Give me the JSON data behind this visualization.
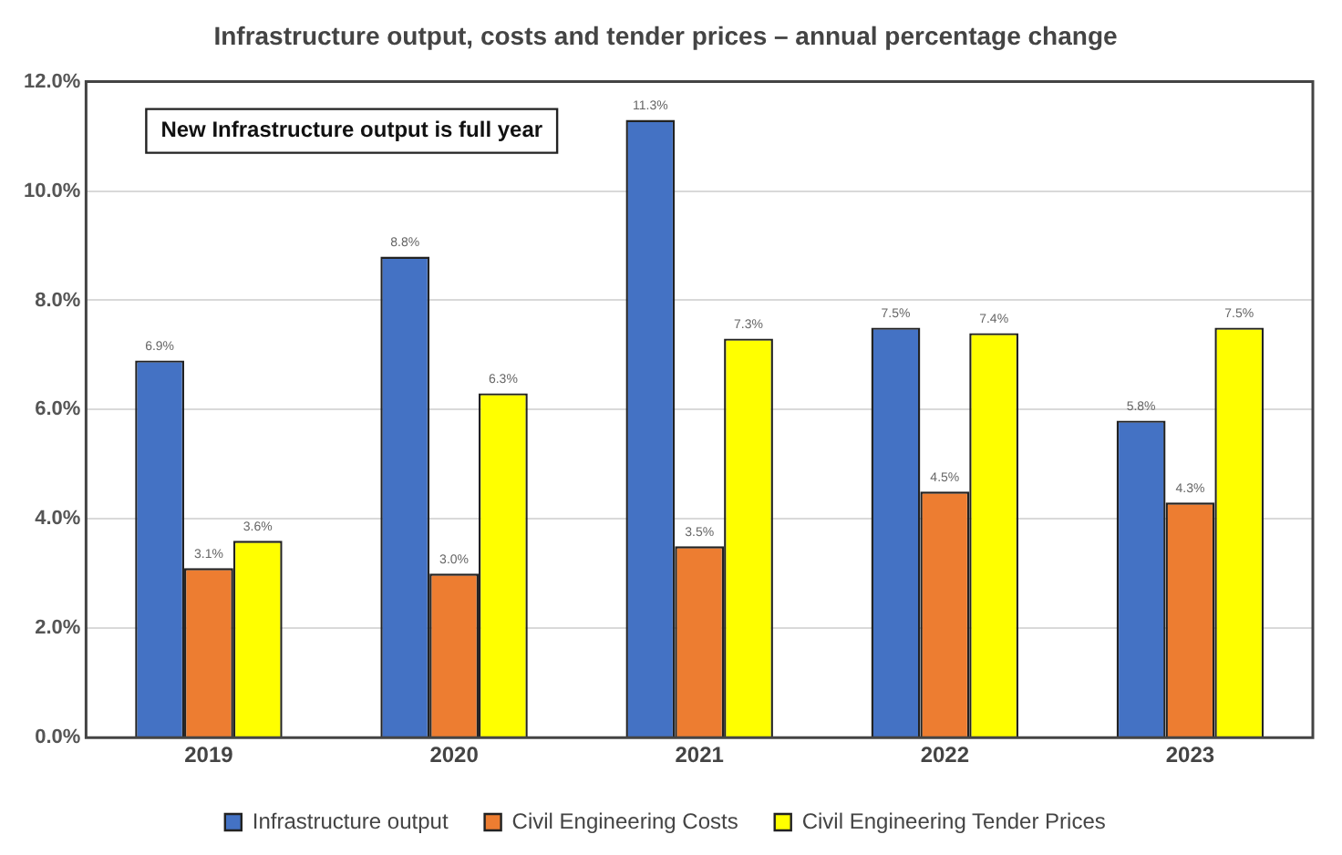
{
  "chart_data": {
    "type": "bar",
    "title": "Infrastructure output, costs and tender prices – annual percentage change",
    "categories": [
      "2019",
      "2020",
      "2021",
      "2022",
      "2023"
    ],
    "series": [
      {
        "name": "Infrastructure output",
        "color": "#4472c4",
        "values": [
          6.9,
          8.8,
          11.3,
          7.5,
          5.8
        ],
        "value_labels": [
          "6.9%",
          "8.8%",
          "11.3%",
          "7.5%",
          "5.8%"
        ]
      },
      {
        "name": "Civil Engineering Costs",
        "color": "#ed7d31",
        "values": [
          3.1,
          3.0,
          3.5,
          4.5,
          4.3
        ],
        "value_labels": [
          "3.1%",
          "3.0%",
          "3.5%",
          "4.5%",
          "4.3%"
        ]
      },
      {
        "name": "Civil Engineering Tender Prices",
        "color": "#ffff00",
        "values": [
          3.6,
          6.3,
          7.3,
          7.4,
          7.5
        ],
        "value_labels": [
          "3.6%",
          "6.3%",
          "7.3%",
          "7.4%",
          "7.5%"
        ]
      }
    ],
    "ylim": [
      0,
      12
    ],
    "yticks": [
      {
        "value": 0,
        "label": "0.0%"
      },
      {
        "value": 2,
        "label": "2.0%"
      },
      {
        "value": 4,
        "label": "4.0%"
      },
      {
        "value": 6,
        "label": "6.0%"
      },
      {
        "value": 8,
        "label": "8.0%"
      },
      {
        "value": 10,
        "label": "10.0%"
      },
      {
        "value": 12,
        "label": "12.0%"
      }
    ],
    "grid": "y",
    "legend": "bottom",
    "annotations": [
      "New Infrastructure output is full year"
    ]
  }
}
